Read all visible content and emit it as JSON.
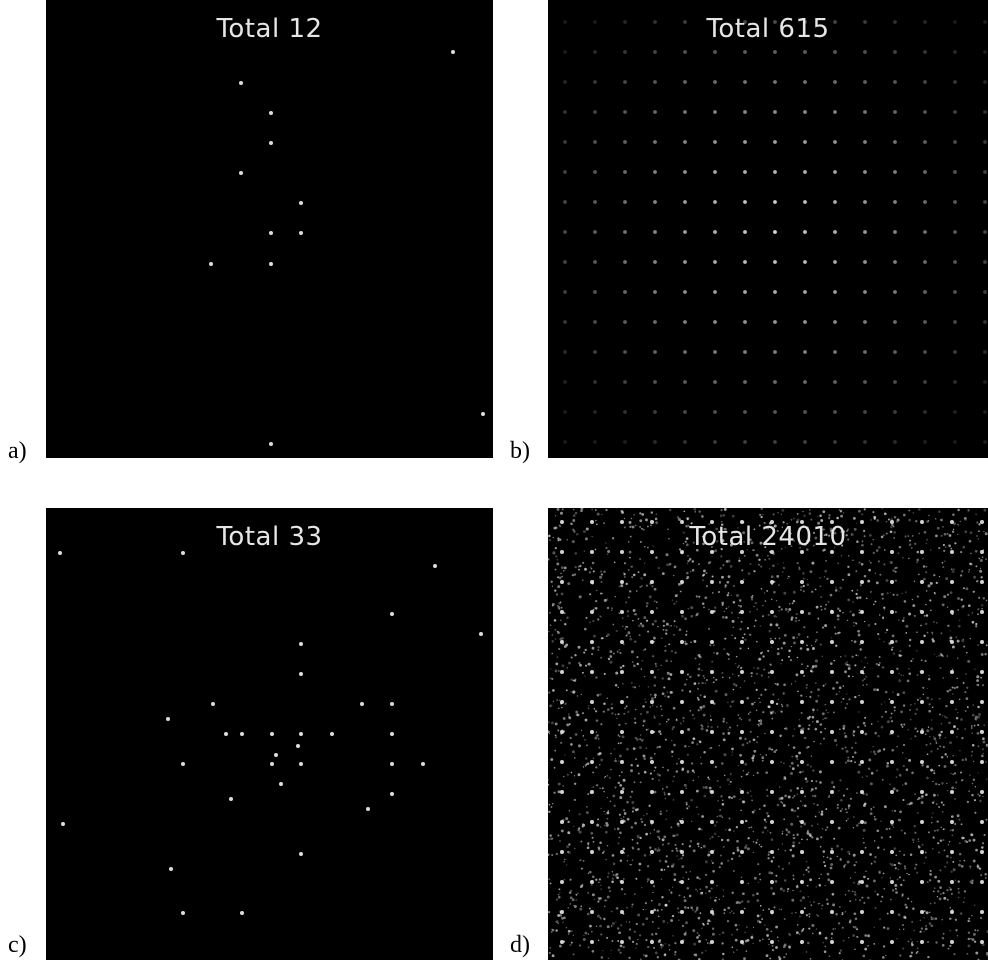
{
  "panels": [
    {
      "id": "a",
      "label": "a)",
      "title": "Total 12"
    },
    {
      "id": "b",
      "label": "b)",
      "title": "Total 615"
    },
    {
      "id": "c",
      "label": "c)",
      "title": "Total 33"
    },
    {
      "id": "d",
      "label": "d)",
      "title": "Total 24010"
    }
  ],
  "colors": {
    "background": "#000000",
    "spot": "#e8e8e8",
    "text": "#e6e6e6"
  }
}
